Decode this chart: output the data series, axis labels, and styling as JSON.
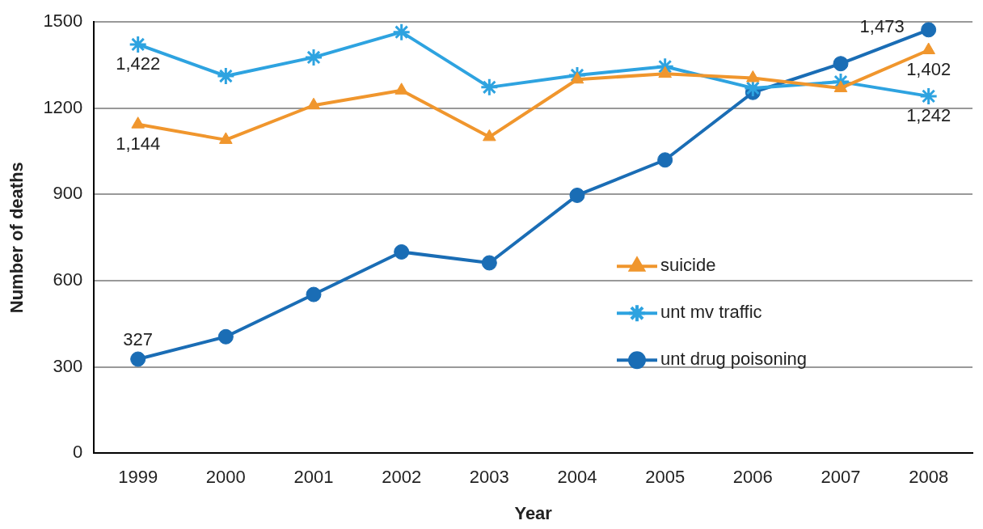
{
  "chart_data": {
    "type": "line",
    "xlabel": "Year",
    "ylabel": "Number of deaths",
    "categories": [
      "1999",
      "2000",
      "2001",
      "2002",
      "2003",
      "2004",
      "2005",
      "2006",
      "2007",
      "2008"
    ],
    "series": [
      {
        "name": "suicide",
        "color": "#f0962d",
        "marker": "triangle",
        "values": [
          1144,
          1090,
          1210,
          1262,
          1100,
          1300,
          1320,
          1305,
          1270,
          1402
        ],
        "value_labels": [
          "1,144",
          null,
          null,
          null,
          null,
          null,
          null,
          null,
          null,
          "1,402"
        ]
      },
      {
        "name": "unt mv traffic",
        "color": "#2ea3e0",
        "marker": "cross",
        "values": [
          1422,
          1312,
          1377,
          1465,
          1273,
          1315,
          1345,
          1270,
          1292,
          1242
        ],
        "value_labels": [
          "1,422",
          null,
          null,
          null,
          null,
          null,
          null,
          null,
          null,
          "1,242"
        ]
      },
      {
        "name": "unt drug poisoning",
        "color": "#1a6db5",
        "marker": "circle",
        "values": [
          327,
          405,
          552,
          700,
          662,
          897,
          1020,
          1255,
          1355,
          1473
        ],
        "value_labels": [
          "327",
          null,
          null,
          null,
          null,
          null,
          null,
          null,
          null,
          "1,473"
        ]
      }
    ],
    "ylim": [
      0,
      1500
    ],
    "yticks": [
      0,
      300,
      600,
      900,
      1200,
      1500
    ],
    "grid": "y",
    "legend": "bottom right",
    "line_style": "solid"
  }
}
